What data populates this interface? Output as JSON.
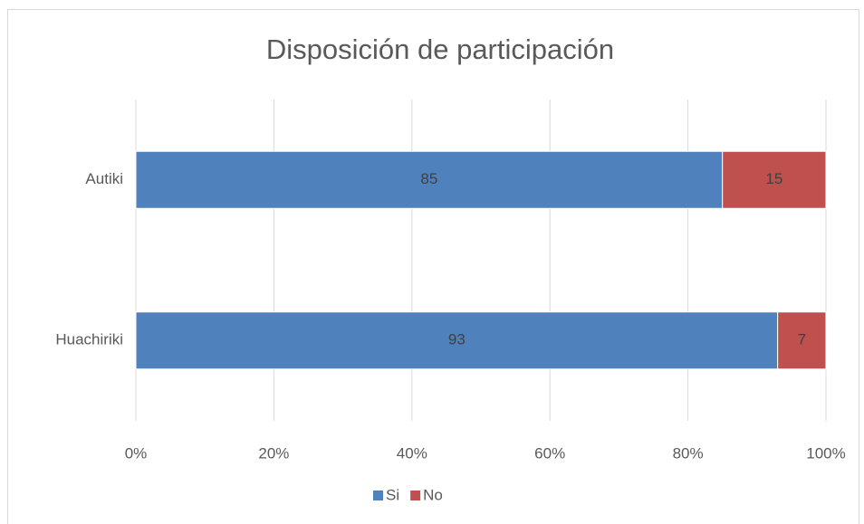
{
  "chart_data": {
    "type": "stacked_bar_horizontal",
    "title": "Disposición de participación",
    "categories": [
      "Autiki",
      "Huachiriki"
    ],
    "series": [
      {
        "name": "Si",
        "color": "#4f81bd",
        "values": [
          85,
          93
        ]
      },
      {
        "name": "No",
        "color": "#c0504d",
        "values": [
          15,
          7
        ]
      }
    ],
    "xlim": [
      0,
      100
    ],
    "xticks": [
      {
        "value": 0,
        "label": "0%"
      },
      {
        "value": 20,
        "label": "20%"
      },
      {
        "value": 40,
        "label": "40%"
      },
      {
        "value": 60,
        "label": "60%"
      },
      {
        "value": 80,
        "label": "80%"
      },
      {
        "value": 100,
        "label": "100%"
      }
    ],
    "grid": true,
    "legend": "bottom"
  }
}
